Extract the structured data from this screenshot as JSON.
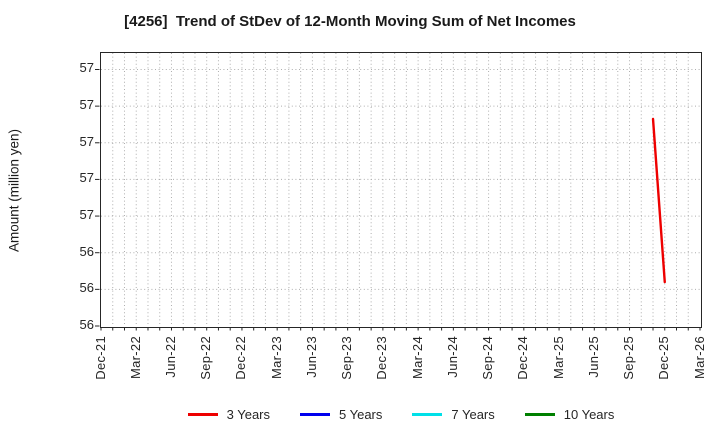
{
  "chart_data": {
    "type": "line",
    "title": "[4256]  Trend of StDev of 12-Month Moving Sum of Net Incomes",
    "ylabel": "Amount (million yen)",
    "x_axis": {
      "tick_labels": [
        "Dec-21",
        "Mar-22",
        "Jun-22",
        "Sep-22",
        "Dec-22",
        "Mar-23",
        "Jun-23",
        "Sep-23",
        "Dec-23",
        "Mar-24",
        "Jun-24",
        "Sep-24",
        "Dec-24",
        "Mar-25",
        "Jun-25",
        "Sep-25",
        "Dec-25",
        "Mar-26"
      ],
      "months_total": 51,
      "tick_every_months": 3,
      "start_label": "Dec-21",
      "end_label": "Mar-26"
    },
    "y_axis": {
      "ticks": [
        56.0,
        56.2,
        56.4,
        56.6,
        56.8,
        57.0,
        57.2,
        57.4
      ],
      "tick_display": [
        "56",
        "56",
        "56",
        "57",
        "57",
        "57",
        "57",
        "57"
      ],
      "ylim": [
        56.0,
        57.49
      ]
    },
    "grid": {
      "show": true,
      "color": "#aeaeae",
      "style": "dotted",
      "vertical_interval_months": 1
    },
    "axis_color": "#262626",
    "series": [
      {
        "name": "3 Years",
        "color": "#ee0000",
        "points": [
          {
            "x_label": "Nov-25",
            "month_index": 47,
            "value": 57.13
          },
          {
            "x_label": "Dec-25",
            "month_index": 48,
            "value": 56.24
          }
        ]
      },
      {
        "name": "5 Years",
        "color": "#0000ee",
        "points": []
      },
      {
        "name": "7 Years",
        "color": "#00e0e8",
        "points": []
      },
      {
        "name": "10 Years",
        "color": "#008000",
        "points": []
      }
    ],
    "legend_position": "bottom"
  }
}
